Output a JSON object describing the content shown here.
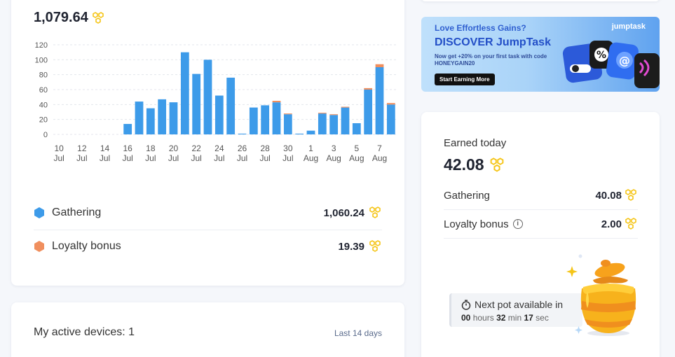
{
  "balance": {
    "total": "1,079.64"
  },
  "chart_data": {
    "type": "bar",
    "stacked": true,
    "categories": [
      "10 Jul",
      "11 Jul",
      "12 Jul",
      "13 Jul",
      "14 Jul",
      "15 Jul",
      "16 Jul",
      "17 Jul",
      "18 Jul",
      "19 Jul",
      "20 Jul",
      "21 Jul",
      "22 Jul",
      "23 Jul",
      "24 Jul",
      "25 Jul",
      "26 Jul",
      "27 Jul",
      "28 Jul",
      "29 Jul",
      "30 Jul",
      "31 Jul",
      "1 Aug",
      "2 Aug",
      "3 Aug",
      "4 Aug",
      "5 Aug",
      "6 Aug",
      "7 Aug",
      "8 Aug"
    ],
    "tick_labels": [
      [
        "10",
        "Jul"
      ],
      [
        "12",
        "Jul"
      ],
      [
        "14",
        "Jul"
      ],
      [
        "16",
        "Jul"
      ],
      [
        "18",
        "Jul"
      ],
      [
        "20",
        "Jul"
      ],
      [
        "22",
        "Jul"
      ],
      [
        "24",
        "Jul"
      ],
      [
        "26",
        "Jul"
      ],
      [
        "28",
        "Jul"
      ],
      [
        "30",
        "Jul"
      ],
      [
        "1",
        "Aug"
      ],
      [
        "3",
        "Aug"
      ],
      [
        "5",
        "Aug"
      ],
      [
        "7",
        "Aug"
      ]
    ],
    "series": [
      {
        "name": "Gathering",
        "color": "#3d9be9",
        "values": [
          0,
          0,
          0,
          0,
          0,
          0,
          14,
          44,
          35,
          47,
          43,
          110,
          81,
          100,
          52,
          76,
          1,
          36,
          39,
          43,
          27,
          1,
          5,
          28,
          26,
          36,
          15,
          60,
          90,
          40
        ]
      },
      {
        "name": "Loyalty bonus",
        "color": "#f08f5e",
        "values": [
          0,
          0,
          0,
          0,
          0,
          0,
          0,
          0,
          0,
          0,
          0,
          0,
          0,
          0,
          0,
          0,
          0,
          0,
          0,
          2,
          1,
          0,
          0,
          1,
          1,
          1,
          0,
          2,
          4,
          2
        ]
      }
    ],
    "ylim": [
      0,
      120
    ],
    "yticks": [
      0,
      20,
      40,
      60,
      80,
      100,
      120
    ],
    "grid": true
  },
  "legend": [
    {
      "label": "Gathering",
      "value": "1,060.24",
      "color": "#3d9be9"
    },
    {
      "label": "Loyalty bonus",
      "value": "19.39",
      "color": "#f08f5e"
    }
  ],
  "devices": {
    "title": "My active devices: 1",
    "range": "Last 14 days"
  },
  "banner": {
    "headline": "Love Effortless Gains?",
    "title": "DISCOVER JumpTask",
    "body": "Now get +20% on your first task with code HONEYGAIN20",
    "button": "Start Earning More",
    "logo": "jumptask"
  },
  "earned": {
    "title": "Earned today",
    "value": "42.08",
    "rows": [
      {
        "label": "Gathering",
        "value": "40.08",
        "info": false
      },
      {
        "label": "Loyalty bonus",
        "value": "2.00",
        "info": true
      }
    ]
  },
  "pot": {
    "label": "Next pot available in",
    "hours": "00",
    "hours_unit": "hours",
    "minutes": "32",
    "minutes_unit": "min",
    "seconds": "17",
    "seconds_unit": "sec"
  },
  "colors": {
    "honey": "#f5c518",
    "accent": "#3d9be9",
    "bonus": "#f08f5e"
  }
}
